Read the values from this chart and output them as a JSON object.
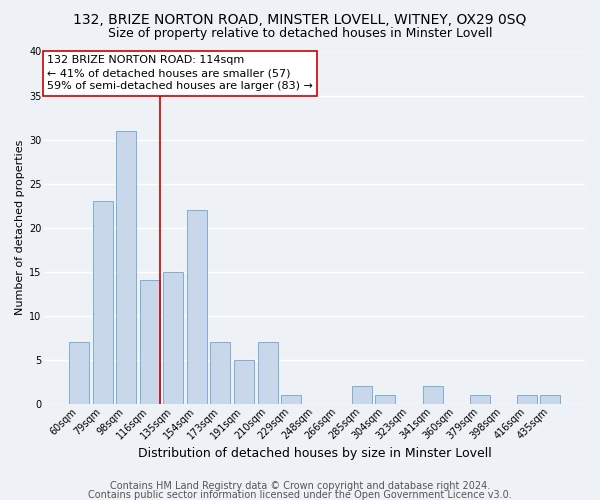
{
  "title1": "132, BRIZE NORTON ROAD, MINSTER LOVELL, WITNEY, OX29 0SQ",
  "title2": "Size of property relative to detached houses in Minster Lovell",
  "xlabel": "Distribution of detached houses by size in Minster Lovell",
  "ylabel": "Number of detached properties",
  "bin_labels": [
    "60sqm",
    "79sqm",
    "98sqm",
    "116sqm",
    "135sqm",
    "154sqm",
    "173sqm",
    "191sqm",
    "210sqm",
    "229sqm",
    "248sqm",
    "266sqm",
    "285sqm",
    "304sqm",
    "323sqm",
    "341sqm",
    "360sqm",
    "379sqm",
    "398sqm",
    "416sqm",
    "435sqm"
  ],
  "bar_values": [
    7,
    23,
    31,
    14,
    15,
    22,
    7,
    5,
    7,
    1,
    0,
    0,
    2,
    1,
    0,
    2,
    0,
    1,
    0,
    1,
    1
  ],
  "bar_color": "#c8d8ea",
  "bar_edge_color": "#7bafd4",
  "vline_x_index": 3,
  "vline_color": "#cc0000",
  "annotation_text": "132 BRIZE NORTON ROAD: 114sqm\n← 41% of detached houses are smaller (57)\n59% of semi-detached houses are larger (83) →",
  "annotation_box_color": "#ffffff",
  "annotation_box_edge": "#cc0000",
  "ylim": [
    0,
    40
  ],
  "yticks": [
    0,
    5,
    10,
    15,
    20,
    25,
    30,
    35,
    40
  ],
  "footer1": "Contains HM Land Registry data © Crown copyright and database right 2024.",
  "footer2": "Contains public sector information licensed under the Open Government Licence v3.0.",
  "bg_color": "#eef2f7",
  "grid_color": "#ffffff",
  "title1_fontsize": 10,
  "title2_fontsize": 9,
  "xlabel_fontsize": 9,
  "ylabel_fontsize": 8,
  "annotation_fontsize": 8,
  "tick_fontsize": 7,
  "footer_fontsize": 7
}
